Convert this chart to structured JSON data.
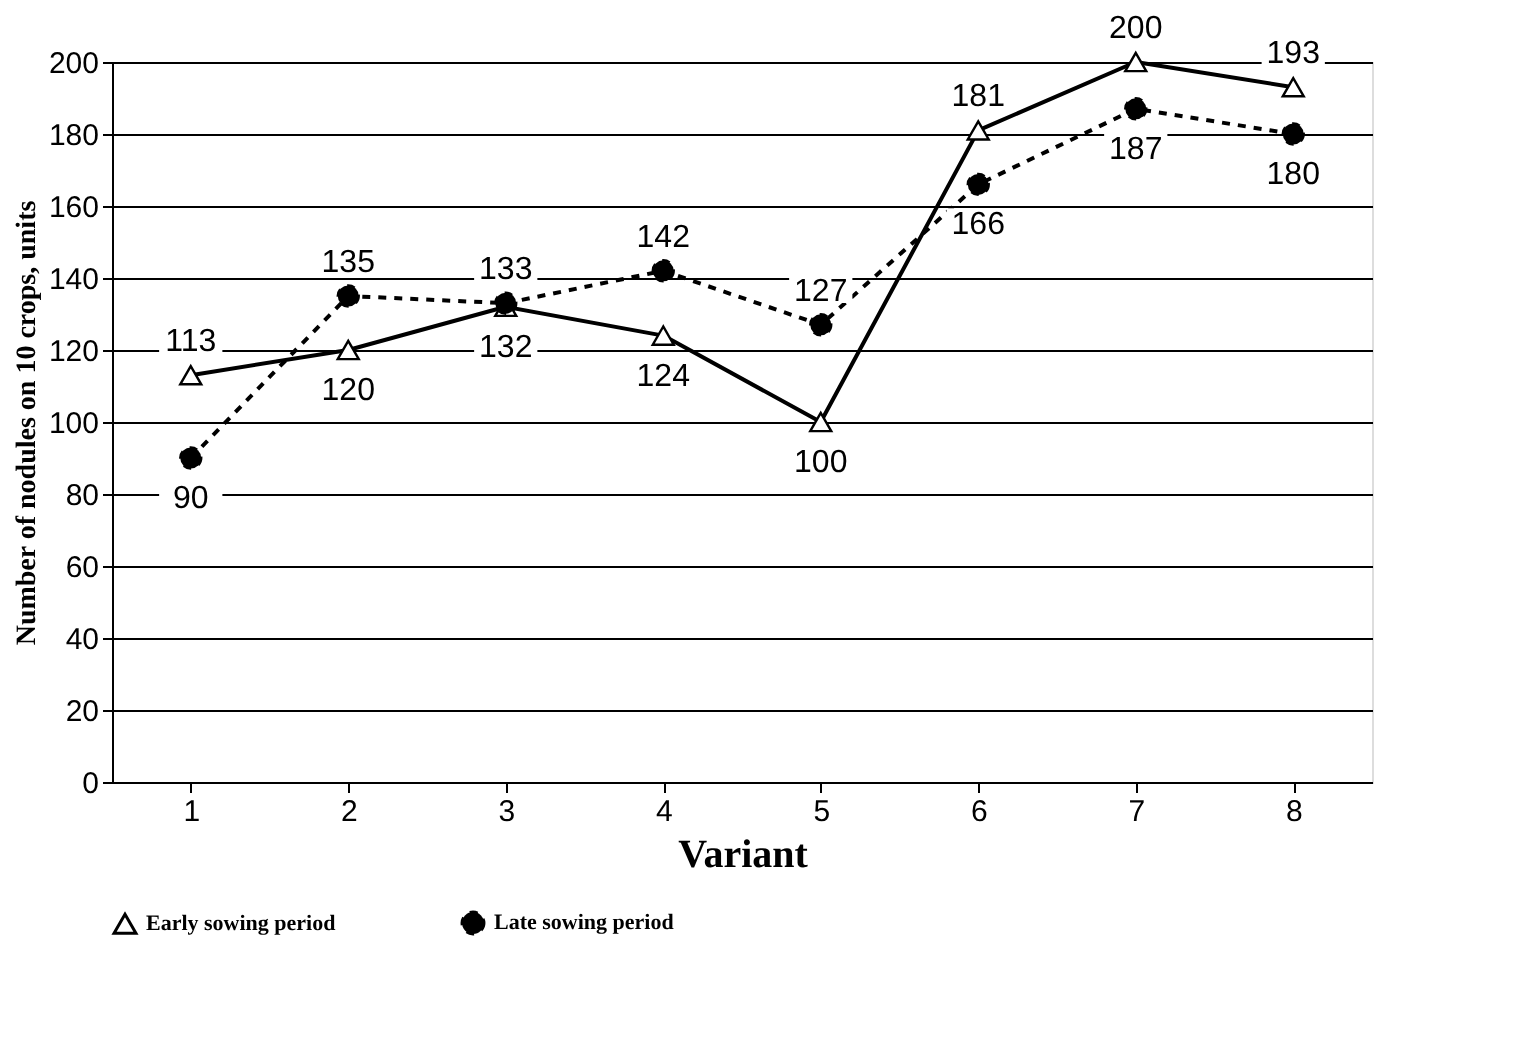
{
  "chart_data": {
    "type": "line",
    "xlabel": "Variant",
    "ylabel": "Number of nodules on 10 crops, units",
    "categories": [
      "1",
      "2",
      "3",
      "4",
      "5",
      "6",
      "7",
      "8"
    ],
    "series": [
      {
        "name": "Early sowing period",
        "color": "#000000",
        "values": [
          113,
          120,
          132,
          124,
          100,
          181,
          200,
          193
        ],
        "marker": "triangle",
        "line_style": "solid"
      },
      {
        "name": "Late sowing period",
        "color": "#000000",
        "values": [
          90,
          135,
          133,
          142,
          127,
          166,
          187,
          180
        ],
        "marker": "circle",
        "line_style": "dashed"
      }
    ],
    "ylim": [
      0,
      200
    ],
    "yticks": [
      0,
      20,
      40,
      60,
      80,
      100,
      120,
      140,
      160,
      180,
      200
    ],
    "grid": "y",
    "legend": "bottom",
    "data_labels": true
  }
}
